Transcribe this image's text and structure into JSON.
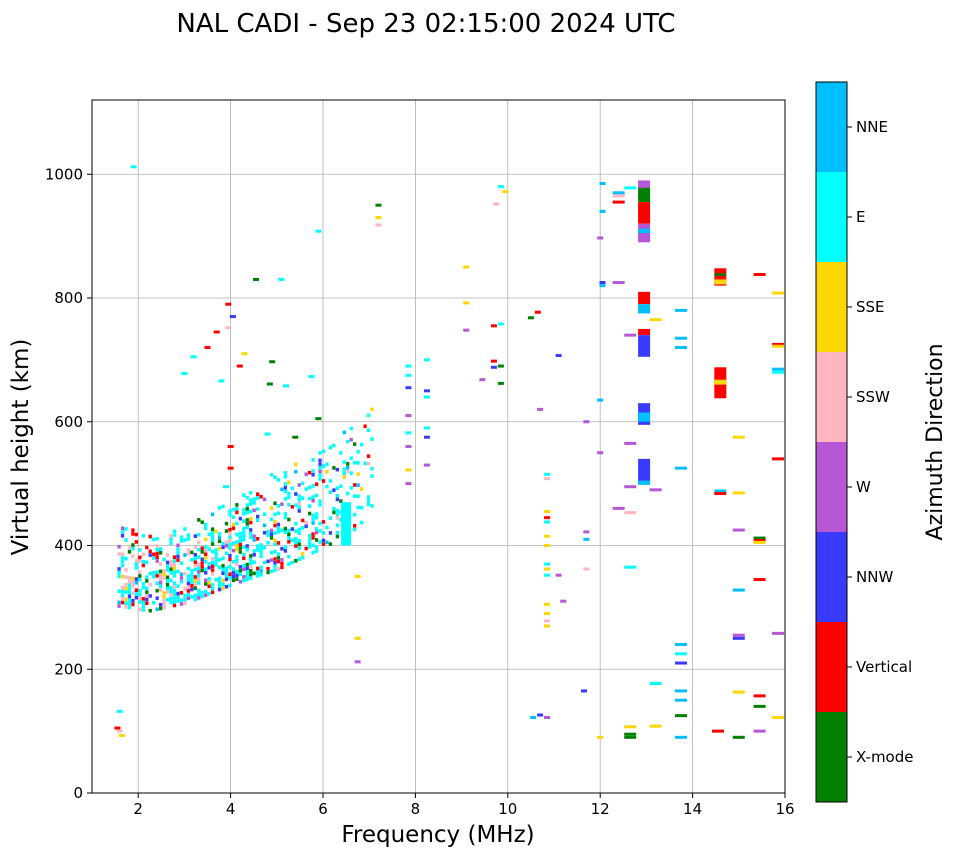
{
  "chart_data": {
    "type": "scatter",
    "title": "NAL CADI - Sep 23 02:15:00 2024 UTC",
    "xlabel": "Frequency (MHz)",
    "ylabel": "Virtual height (km)",
    "xlim": [
      1,
      16
    ],
    "ylim": [
      0,
      1120
    ],
    "xticks": [
      2,
      4,
      6,
      8,
      10,
      12,
      14,
      16
    ],
    "yticks": [
      0,
      200,
      400,
      600,
      800,
      1000
    ],
    "xtick_labels": [
      "2",
      "4",
      "6",
      "8",
      "10",
      "12",
      "14",
      "16"
    ],
    "ytick_labels": [
      "0",
      "200",
      "400",
      "600",
      "800",
      "1000"
    ],
    "grid": true,
    "colorbar": {
      "label": "Azimuth Direction",
      "categories": [
        "X-mode",
        "Vertical",
        "NNW",
        "W",
        "SSW",
        "SSE",
        "E",
        "NNE"
      ],
      "colors": [
        "#008000",
        "#ff0000",
        "#3a3aff",
        "#b657d6",
        "#ffb6c1",
        "#ffd700",
        "#00ffff",
        "#00bfff"
      ]
    },
    "dense_region": {
      "description": "F-layer trace from 1.5 to 7 MHz",
      "lower_edge": [
        [
          1.6,
          300
        ],
        [
          2.2,
          292
        ],
        [
          3.0,
          305
        ],
        [
          4.0,
          335
        ],
        [
          5.0,
          360
        ],
        [
          6.0,
          395
        ],
        [
          6.6,
          420
        ],
        [
          7.0,
          450
        ]
      ],
      "upper_edge": [
        [
          1.6,
          430
        ],
        [
          2.2,
          415
        ],
        [
          3.0,
          430
        ],
        [
          4.0,
          470
        ],
        [
          5.0,
          520
        ],
        [
          6.0,
          560
        ],
        [
          6.6,
          600
        ],
        [
          7.0,
          620
        ]
      ]
    },
    "points": [
      {
        "f": 1.55,
        "h": 105,
        "c": 1
      },
      {
        "f": 1.6,
        "h": 100,
        "c": 4
      },
      {
        "f": 1.65,
        "h": 93,
        "c": 5
      },
      {
        "f": 1.6,
        "h": 132,
        "c": 6
      },
      {
        "f": 1.9,
        "h": 1012,
        "c": 6
      },
      {
        "f": 3.2,
        "h": 705,
        "c": 6
      },
      {
        "f": 3.0,
        "h": 678,
        "c": 6
      },
      {
        "f": 3.5,
        "h": 720,
        "c": 1
      },
      {
        "f": 3.7,
        "h": 745,
        "c": 1
      },
      {
        "f": 3.8,
        "h": 666,
        "c": 6
      },
      {
        "f": 3.95,
        "h": 790,
        "c": 1
      },
      {
        "f": 3.95,
        "h": 752,
        "c": 4
      },
      {
        "f": 4.05,
        "h": 770,
        "c": 2
      },
      {
        "f": 4.3,
        "h": 710,
        "c": 5
      },
      {
        "f": 4.2,
        "h": 690,
        "c": 1
      },
      {
        "f": 4.55,
        "h": 830,
        "c": 0
      },
      {
        "f": 4.9,
        "h": 697,
        "c": 0
      },
      {
        "f": 5.1,
        "h": 830,
        "c": 6
      },
      {
        "f": 4.85,
        "h": 661,
        "c": 0
      },
      {
        "f": 5.2,
        "h": 658,
        "c": 6
      },
      {
        "f": 5.75,
        "h": 673,
        "c": 6
      },
      {
        "f": 5.9,
        "h": 908,
        "c": 6
      },
      {
        "f": 4.8,
        "h": 580,
        "c": 6
      },
      {
        "f": 5.4,
        "h": 575,
        "c": 0
      },
      {
        "f": 5.9,
        "h": 605,
        "c": 0
      },
      {
        "f": 4.0,
        "h": 560,
        "c": 1
      },
      {
        "f": 4.0,
        "h": 525,
        "c": 1
      },
      {
        "f": 3.9,
        "h": 495,
        "c": 6
      },
      {
        "f": 7.2,
        "h": 950,
        "c": 0
      },
      {
        "f": 7.2,
        "h": 930,
        "c": 5
      },
      {
        "f": 7.2,
        "h": 918,
        "c": 4
      },
      {
        "f": 6.75,
        "h": 250,
        "c": 5
      },
      {
        "f": 6.75,
        "h": 212,
        "c": 3
      },
      {
        "f": 6.75,
        "h": 350,
        "c": 5
      },
      {
        "f": 7.85,
        "h": 690,
        "c": 6
      },
      {
        "f": 7.85,
        "h": 675,
        "c": 6
      },
      {
        "f": 7.85,
        "h": 655,
        "c": 2
      },
      {
        "f": 7.85,
        "h": 610,
        "c": 3
      },
      {
        "f": 7.85,
        "h": 582,
        "c": 6
      },
      {
        "f": 7.85,
        "h": 560,
        "c": 3
      },
      {
        "f": 7.85,
        "h": 522,
        "c": 5
      },
      {
        "f": 7.85,
        "h": 500,
        "c": 3
      },
      {
        "f": 8.25,
        "h": 700,
        "c": 6
      },
      {
        "f": 8.25,
        "h": 650,
        "c": 2
      },
      {
        "f": 8.25,
        "h": 640,
        "c": 6
      },
      {
        "f": 8.25,
        "h": 590,
        "c": 6
      },
      {
        "f": 8.25,
        "h": 575,
        "c": 2
      },
      {
        "f": 8.25,
        "h": 530,
        "c": 3
      },
      {
        "f": 9.1,
        "h": 850,
        "c": 5
      },
      {
        "f": 9.1,
        "h": 792,
        "c": 5
      },
      {
        "f": 9.1,
        "h": 748,
        "c": 3
      },
      {
        "f": 9.45,
        "h": 668,
        "c": 3
      },
      {
        "f": 9.7,
        "h": 755,
        "c": 1
      },
      {
        "f": 9.7,
        "h": 698,
        "c": 1
      },
      {
        "f": 9.7,
        "h": 688,
        "c": 2
      },
      {
        "f": 9.85,
        "h": 758,
        "c": 6
      },
      {
        "f": 9.85,
        "h": 690,
        "c": 0
      },
      {
        "f": 9.85,
        "h": 662,
        "c": 0
      },
      {
        "f": 9.75,
        "h": 952,
        "c": 4
      },
      {
        "f": 9.85,
        "h": 980,
        "c": 6
      },
      {
        "f": 9.95,
        "h": 972,
        "c": 5
      },
      {
        "f": 10.5,
        "h": 768,
        "c": 0
      },
      {
        "f": 10.65,
        "h": 777,
        "c": 1
      },
      {
        "f": 10.7,
        "h": 620,
        "c": 3
      },
      {
        "f": 11.1,
        "h": 707,
        "c": 2
      },
      {
        "f": 10.85,
        "h": 515,
        "c": 6
      },
      {
        "f": 10.85,
        "h": 508,
        "c": 4
      },
      {
        "f": 10.85,
        "h": 455,
        "c": 5
      },
      {
        "f": 10.85,
        "h": 445,
        "c": 1
      },
      {
        "f": 10.85,
        "h": 438,
        "c": 6
      },
      {
        "f": 10.85,
        "h": 415,
        "c": 5
      },
      {
        "f": 10.85,
        "h": 400,
        "c": 5
      },
      {
        "f": 10.85,
        "h": 370,
        "c": 6
      },
      {
        "f": 10.85,
        "h": 362,
        "c": 5
      },
      {
        "f": 10.85,
        "h": 352,
        "c": 6
      },
      {
        "f": 10.85,
        "h": 305,
        "c": 5
      },
      {
        "f": 10.85,
        "h": 290,
        "c": 5
      },
      {
        "f": 10.85,
        "h": 278,
        "c": 4
      },
      {
        "f": 10.85,
        "h": 270,
        "c": 5
      },
      {
        "f": 11.1,
        "h": 352,
        "c": 3
      },
      {
        "f": 11.2,
        "h": 310,
        "c": 3
      },
      {
        "f": 10.55,
        "h": 122,
        "c": 7
      },
      {
        "f": 10.7,
        "h": 126,
        "c": 2
      },
      {
        "f": 10.85,
        "h": 122,
        "c": 3
      },
      {
        "f": 12.05,
        "h": 985,
        "c": 7
      },
      {
        "f": 12.05,
        "h": 940,
        "c": 7
      },
      {
        "f": 12.0,
        "h": 897,
        "c": 3
      },
      {
        "f": 12.05,
        "h": 825,
        "c": 2
      },
      {
        "f": 12.05,
        "h": 820,
        "c": 7
      },
      {
        "f": 12.0,
        "h": 635,
        "c": 7
      },
      {
        "f": 12.0,
        "h": 550,
        "c": 3
      },
      {
        "f": 11.7,
        "h": 600,
        "c": 3
      },
      {
        "f": 11.7,
        "h": 422,
        "c": 3
      },
      {
        "f": 11.7,
        "h": 410,
        "c": 7
      },
      {
        "f": 11.7,
        "h": 362,
        "c": 4
      },
      {
        "f": 11.65,
        "h": 165,
        "c": 2
      },
      {
        "f": 12.0,
        "h": 90,
        "c": 5
      },
      {
        "f": 12.4,
        "h": 970,
        "c": 7
      },
      {
        "f": 12.4,
        "h": 965,
        "c": 4
      },
      {
        "f": 12.4,
        "h": 955,
        "c": 1
      },
      {
        "f": 12.4,
        "h": 825,
        "c": 3
      },
      {
        "f": 12.4,
        "h": 460,
        "c": 3
      },
      {
        "f": 12.65,
        "h": 978,
        "c": 6
      },
      {
        "f": 12.65,
        "h": 740,
        "c": 3
      },
      {
        "f": 12.65,
        "h": 565,
        "c": 3
      },
      {
        "f": 12.65,
        "h": 495,
        "c": 3
      },
      {
        "f": 12.65,
        "h": 453,
        "c": 4
      },
      {
        "f": 12.65,
        "h": 365,
        "c": 6
      },
      {
        "f": 12.65,
        "h": 107,
        "c": 5
      },
      {
        "f": 12.65,
        "h": 95,
        "c": 0
      },
      {
        "f": 12.65,
        "h": 90,
        "c": 0
      },
      {
        "f": 13.2,
        "h": 765,
        "c": 5
      },
      {
        "f": 13.2,
        "h": 490,
        "c": 3
      },
      {
        "f": 13.2,
        "h": 177,
        "c": 6
      },
      {
        "f": 13.2,
        "h": 108,
        "c": 5
      },
      {
        "f": 13.75,
        "h": 780,
        "c": 7
      },
      {
        "f": 13.75,
        "h": 735,
        "c": 7
      },
      {
        "f": 13.75,
        "h": 720,
        "c": 7
      },
      {
        "f": 13.75,
        "h": 525,
        "c": 7
      },
      {
        "f": 13.75,
        "h": 240,
        "c": 7
      },
      {
        "f": 13.75,
        "h": 225,
        "c": 6
      },
      {
        "f": 13.75,
        "h": 210,
        "c": 2
      },
      {
        "f": 13.75,
        "h": 165,
        "c": 7
      },
      {
        "f": 13.75,
        "h": 150,
        "c": 7
      },
      {
        "f": 13.75,
        "h": 125,
        "c": 0
      },
      {
        "f": 13.75,
        "h": 90,
        "c": 7
      },
      {
        "f": 14.6,
        "h": 488,
        "c": 7
      },
      {
        "f": 14.6,
        "h": 484,
        "c": 1
      },
      {
        "f": 14.55,
        "h": 100,
        "c": 1
      },
      {
        "f": 15.0,
        "h": 575,
        "c": 5
      },
      {
        "f": 15.0,
        "h": 485,
        "c": 5
      },
      {
        "f": 15.0,
        "h": 425,
        "c": 3
      },
      {
        "f": 15.0,
        "h": 328,
        "c": 7
      },
      {
        "f": 15.0,
        "h": 255,
        "c": 3
      },
      {
        "f": 15.0,
        "h": 250,
        "c": 2
      },
      {
        "f": 15.0,
        "h": 163,
        "c": 5
      },
      {
        "f": 15.0,
        "h": 90,
        "c": 0
      },
      {
        "f": 15.45,
        "h": 838,
        "c": 1
      },
      {
        "f": 15.45,
        "h": 412,
        "c": 0
      },
      {
        "f": 15.45,
        "h": 408,
        "c": 1
      },
      {
        "f": 15.45,
        "h": 405,
        "c": 5
      },
      {
        "f": 15.45,
        "h": 345,
        "c": 1
      },
      {
        "f": 15.45,
        "h": 157,
        "c": 1
      },
      {
        "f": 15.45,
        "h": 140,
        "c": 0
      },
      {
        "f": 15.45,
        "h": 100,
        "c": 3
      },
      {
        "f": 15.85,
        "h": 808,
        "c": 5
      },
      {
        "f": 15.85,
        "h": 725,
        "c": 1
      },
      {
        "f": 15.85,
        "h": 722,
        "c": 5
      },
      {
        "f": 15.85,
        "h": 685,
        "c": 7
      },
      {
        "f": 15.85,
        "h": 680,
        "c": 6
      },
      {
        "f": 15.85,
        "h": 540,
        "c": 1
      },
      {
        "f": 15.85,
        "h": 258,
        "c": 3
      },
      {
        "f": 15.85,
        "h": 122,
        "c": 5
      }
    ],
    "stacks": [
      {
        "f": 12.95,
        "h0": 975,
        "h1": 990,
        "c": 3
      },
      {
        "f": 12.95,
        "h0": 955,
        "h1": 978,
        "c": 0
      },
      {
        "f": 12.95,
        "h0": 920,
        "h1": 955,
        "c": 1
      },
      {
        "f": 12.95,
        "h0": 890,
        "h1": 920,
        "c": 3
      },
      {
        "f": 12.95,
        "h0": 905,
        "h1": 912,
        "c": 7
      },
      {
        "f": 12.95,
        "h0": 790,
        "h1": 810,
        "c": 1
      },
      {
        "f": 12.95,
        "h0": 775,
        "h1": 790,
        "c": 7
      },
      {
        "f": 12.95,
        "h0": 740,
        "h1": 750,
        "c": 1
      },
      {
        "f": 12.95,
        "h0": 705,
        "h1": 740,
        "c": 2
      },
      {
        "f": 12.95,
        "h0": 595,
        "h1": 630,
        "c": 2
      },
      {
        "f": 12.95,
        "h0": 600,
        "h1": 615,
        "c": 7
      },
      {
        "f": 12.95,
        "h0": 500,
        "h1": 540,
        "c": 2
      },
      {
        "f": 12.95,
        "h0": 498,
        "h1": 505,
        "c": 7
      },
      {
        "f": 14.6,
        "h0": 638,
        "h1": 688,
        "c": 1
      },
      {
        "f": 14.6,
        "h0": 660,
        "h1": 668,
        "c": 5
      },
      {
        "f": 14.6,
        "h0": 820,
        "h1": 848,
        "c": 1
      },
      {
        "f": 14.6,
        "h0": 822,
        "h1": 830,
        "c": 5
      },
      {
        "f": 14.6,
        "h0": 836,
        "h1": 840,
        "c": 0
      },
      {
        "f": 6.5,
        "h0": 400,
        "h1": 470,
        "c": 6
      }
    ]
  }
}
